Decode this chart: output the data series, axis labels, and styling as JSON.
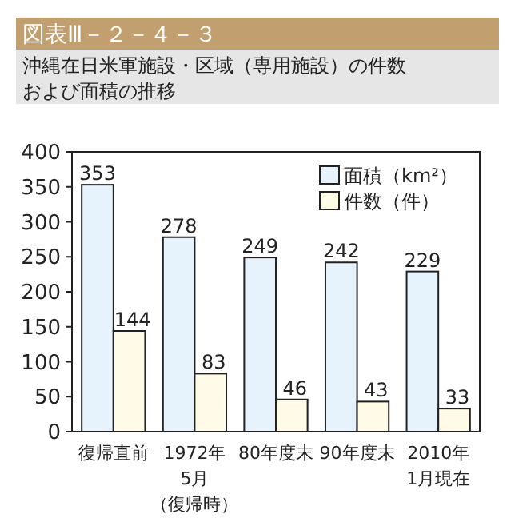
{
  "chart_data": {
    "type": "bar",
    "title": "図表Ⅲ－２－４－３",
    "subtitle": "沖縄在日米軍施設・区域（専用施設）の件数および面積の推移",
    "categories": [
      "復帰直前",
      "1972年5月（復帰時）",
      "80年度末",
      "90年度末",
      "2010年1月現在"
    ],
    "series": [
      {
        "name": "面積（km²）",
        "color": "#e6f3fc",
        "values": [
          353,
          278,
          249,
          242,
          229
        ]
      },
      {
        "name": "件数（件）",
        "color": "#fffbe6",
        "values": [
          144,
          83,
          46,
          43,
          33
        ]
      }
    ],
    "ylim": [
      0,
      400
    ],
    "yticks": [
      0,
      50,
      100,
      150,
      200,
      250,
      300,
      350,
      400
    ],
    "data_labels": true,
    "legend": "top right",
    "grid": false
  }
}
